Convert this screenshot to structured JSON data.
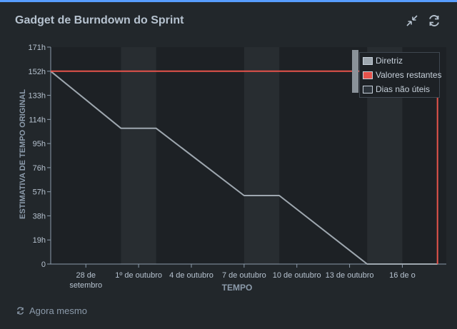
{
  "gadget": {
    "title": "Gadget de Burndown do Sprint",
    "footer_text": "Agora mesmo",
    "icons": {
      "collapse": "collapse-icon",
      "refresh": "refresh-icon",
      "footer": "refresh-icon"
    }
  },
  "colors": {
    "background": "#22272b",
    "plot_background": "#1d2125",
    "non_working_band": "#282d31",
    "guideline": "#9ea7af",
    "remaining": "#e5534b",
    "text": "#b6c2cf",
    "accent": "#579dff"
  },
  "chart_data": {
    "type": "line",
    "title": "Gadget de Burndown do Sprint",
    "xlabel": "TEMPO",
    "ylabel": "ESTIMATIVA DE TEMPO ORIGINAL",
    "x_range_days": [
      -2,
      20.5
    ],
    "ylim": [
      0,
      171
    ],
    "y_ticks": [
      {
        "value": 171,
        "label": "171h"
      },
      {
        "value": 152,
        "label": "152h"
      },
      {
        "value": 133,
        "label": "133h"
      },
      {
        "value": 114,
        "label": "114h"
      },
      {
        "value": 95,
        "label": "95h"
      },
      {
        "value": 76,
        "label": "76h"
      },
      {
        "value": 57,
        "label": "57h"
      },
      {
        "value": 38,
        "label": "38h"
      },
      {
        "value": 19,
        "label": "19h"
      },
      {
        "value": 0,
        "label": "0"
      }
    ],
    "x_ticks": [
      {
        "day": 0,
        "label": [
          "28 de",
          "setembro"
        ]
      },
      {
        "day": 3,
        "label": [
          "1º de outubro"
        ]
      },
      {
        "day": 6,
        "label": [
          "4 de outubro"
        ]
      },
      {
        "day": 9,
        "label": [
          "7 de outubro"
        ]
      },
      {
        "day": 12,
        "label": [
          "10 de outubro"
        ]
      },
      {
        "day": 15,
        "label": [
          "13 de outubro"
        ]
      },
      {
        "day": 18,
        "label": [
          "16 de o"
        ]
      }
    ],
    "non_working_days": [
      [
        2,
        4
      ],
      [
        9,
        11
      ],
      [
        16,
        18
      ]
    ],
    "series": [
      {
        "name": "Diretriz",
        "color": "#9ea7af",
        "points": [
          [
            -2,
            152
          ],
          [
            2,
            107
          ],
          [
            4,
            107
          ],
          [
            9,
            54
          ],
          [
            11,
            54
          ],
          [
            16,
            0
          ],
          [
            20,
            0
          ]
        ]
      },
      {
        "name": "Valores restantes",
        "color": "#e5534b",
        "points": [
          [
            -2,
            152
          ],
          [
            20,
            152
          ],
          [
            20,
            0
          ]
        ]
      }
    ],
    "legend": {
      "position": "top-right",
      "items": [
        {
          "label": "Diretriz",
          "swatch": "#9ea7af"
        },
        {
          "label": "Valores restantes",
          "swatch": "#e5534b"
        },
        {
          "label": "Dias não úteis",
          "swatch": "#2c333a"
        }
      ]
    },
    "grid": false
  }
}
